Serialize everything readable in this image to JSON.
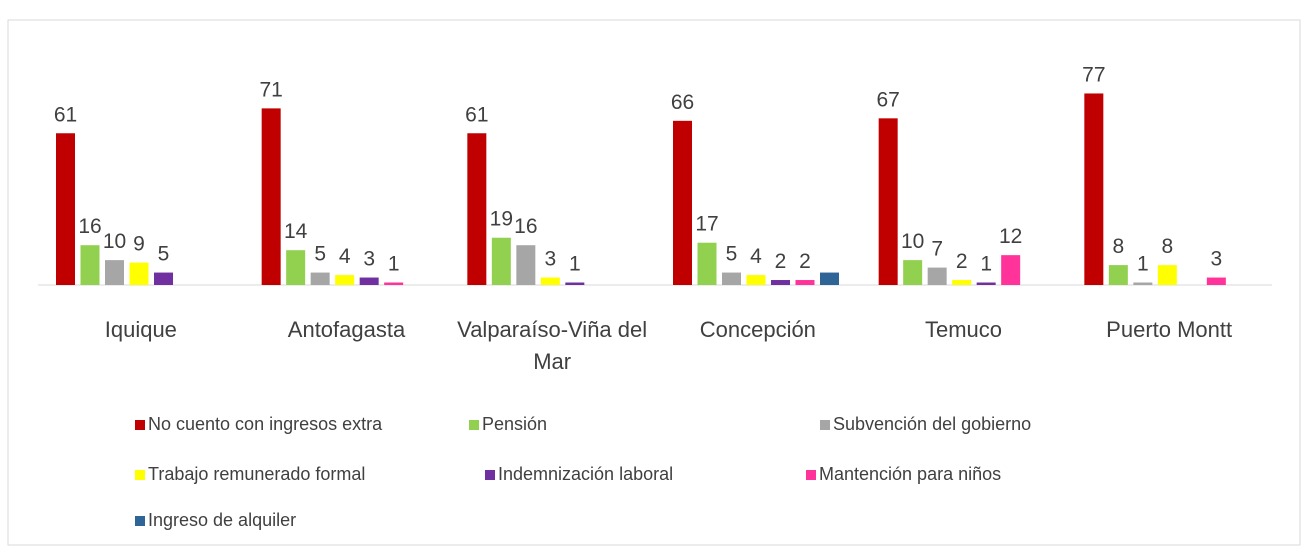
{
  "chart_data": {
    "type": "bar",
    "categories": [
      "Iquique",
      "Antofagasta",
      "Valparaíso-Viña del Mar",
      "Concepción",
      "Temuco",
      "Puerto Montt"
    ],
    "ylim": [
      0,
      80
    ],
    "series": [
      {
        "name": "No cuento con ingresos extra",
        "color": "#c00000",
        "values": [
          61,
          71,
          61,
          66,
          67,
          77
        ]
      },
      {
        "name": "Pensión",
        "color": "#92d050",
        "values": [
          16,
          14,
          19,
          17,
          10,
          8
        ]
      },
      {
        "name": "Subvención del gobierno",
        "color": "#a6a6a6",
        "values": [
          10,
          5,
          16,
          5,
          7,
          1
        ]
      },
      {
        "name": "Trabajo remunerado formal",
        "color": "#ffff00",
        "values": [
          9,
          4,
          3,
          4,
          2,
          8
        ]
      },
      {
        "name": "Indemnización laboral",
        "color": "#7030a0",
        "values": [
          5,
          3,
          1,
          2,
          1,
          null
        ]
      },
      {
        "name": "Mantención para niños",
        "color": "#ff3399",
        "values": [
          null,
          1,
          null,
          2,
          12,
          3
        ]
      },
      {
        "name": "Ingreso de alquiler",
        "color": "#2e6596",
        "values": [
          null,
          null,
          null,
          5,
          null,
          null
        ],
        "data_labels": false
      }
    ]
  }
}
